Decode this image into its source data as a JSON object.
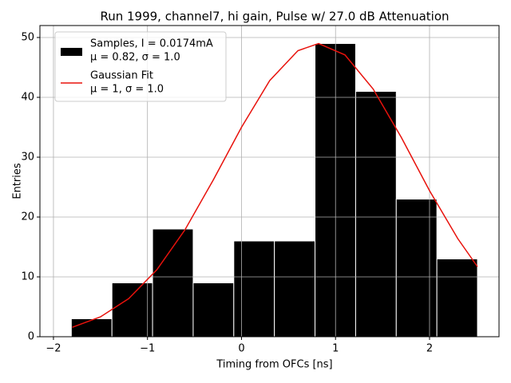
{
  "chart_data": {
    "type": "histogram",
    "title": "Run 1999, channel7, hi gain, Pulse w/ 27.0 dB Attenuation",
    "xlabel": "Timing from OFCs [ns]",
    "ylabel": "Entries",
    "bins": [
      -1.81,
      -1.378,
      -0.946,
      -0.514,
      -0.082,
      0.35,
      0.782,
      1.214,
      1.646,
      2.078,
      2.51
    ],
    "counts": [
      3,
      9,
      18,
      9,
      16,
      16,
      49,
      41,
      23,
      13
    ],
    "name": "Samples, I = 0.0174mA",
    "stats": "μ = 0.82, σ = 1.0",
    "color": "#000000",
    "edgecolor": "#ffffff",
    "fit": {
      "type": "line",
      "name": "Gaussian Fit",
      "stats": "μ = 1, σ = 1.0",
      "color": "#e8120c",
      "x": [
        -1.8,
        -1.5,
        -1.2,
        -0.9,
        -0.6,
        -0.3,
        0,
        0.3,
        0.6,
        0.82,
        1.1,
        1.4,
        1.7,
        2.0,
        2.3,
        2.51
      ],
      "values": [
        1.58,
        3.32,
        6.37,
        11.2,
        17.9,
        26.2,
        35.0,
        42.8,
        47.8,
        49,
        47.1,
        41.4,
        33.3,
        24.4,
        16.4,
        11.7
      ]
    },
    "xlim": [
      -2.144,
      2.739
    ],
    "ylim": [
      0,
      52
    ],
    "xticks": [
      {
        "value": -2,
        "label": "−2"
      },
      {
        "value": -1,
        "label": "−1"
      },
      0,
      1,
      2
    ],
    "yticks": [
      0,
      10,
      20,
      30,
      40,
      50
    ],
    "grid": true,
    "legend": "upper left"
  }
}
